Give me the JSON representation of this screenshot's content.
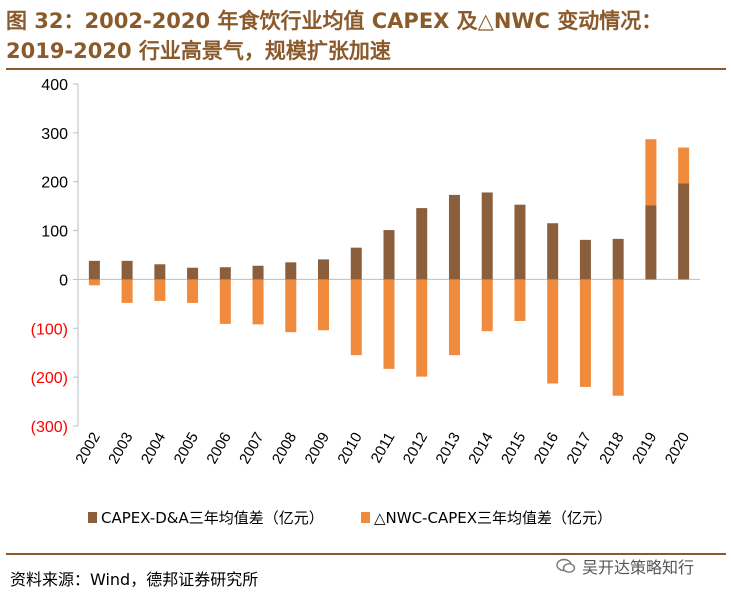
{
  "header": {
    "title_line1": "图 32：2002-2020 年食饮行业均值 CAPEX 及△NWC 变动情况：",
    "title_line2": "2019-2020 行业高景气，规模扩张加速"
  },
  "colors": {
    "accent": "#8B5A2B",
    "capex": "#8B5E3C",
    "nwc": "#F08A3C",
    "negative_tick": "#FF0000",
    "axis": "#BFBFBF"
  },
  "chart_data": {
    "type": "bar",
    "categories": [
      "2002",
      "2003",
      "2004",
      "2005",
      "2006",
      "2007",
      "2008",
      "2009",
      "2010",
      "2011",
      "2012",
      "2013",
      "2014",
      "2015",
      "2016",
      "2017",
      "2018",
      "2019",
      "2020"
    ],
    "series": [
      {
        "name": "CAPEX-D&A三年均值差（亿元）",
        "values": [
          38,
          38,
          31,
          24,
          25,
          28,
          35,
          41,
          65,
          101,
          146,
          173,
          178,
          153,
          115,
          81,
          83,
          152,
          197
        ]
      },
      {
        "name": "△NWC-CAPEX三年均值差（亿元）",
        "values": [
          -12,
          -48,
          -44,
          -48,
          -91,
          -92,
          -108,
          -104,
          -155,
          -183,
          -199,
          -155,
          -106,
          -85,
          -213,
          -220,
          -238,
          135,
          73
        ]
      }
    ],
    "stacking": "positive values of the second series stack on top of the first series",
    "ylim": [
      -300,
      400
    ],
    "yticks": [
      -300,
      -200,
      -100,
      0,
      100,
      200,
      300,
      400
    ],
    "ytick_labels": [
      "(300)",
      "(200)",
      "(100)",
      "0",
      "100",
      "200",
      "300",
      "400"
    ],
    "legend_position": "bottom",
    "xlabel": "",
    "ylabel": ""
  },
  "footer": {
    "source": "资料来源：Wind，德邦证券研究所",
    "watermark": "吴开达策略知行"
  }
}
